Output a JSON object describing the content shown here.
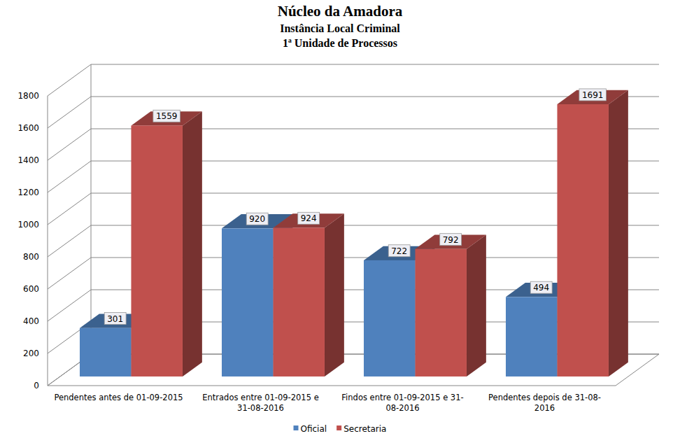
{
  "chart_data": {
    "type": "bar",
    "title": "Núcleo da Amadora",
    "subtitle": [
      "Instância Local Criminal",
      "1ª Unidade de Processos"
    ],
    "categories": [
      "Pendentes antes de 01-09-2015",
      "Entrados entre 01-09-2015 e 31-08-2016",
      "Findos entre 01-09-2015 e 31-08-2016",
      "Pendentes depois de 31-08-2016"
    ],
    "series": [
      {
        "name": "Oficial",
        "color": "#4f81bd",
        "values": [
          301,
          920,
          722,
          494
        ]
      },
      {
        "name": "Secretaria",
        "color": "#c0504d",
        "values": [
          1559,
          924,
          792,
          1691
        ]
      }
    ],
    "ylim": [
      0,
      1800
    ],
    "yticks": [
      0,
      200,
      400,
      600,
      800,
      1000,
      1200,
      1400,
      1600,
      1800
    ],
    "grid": true,
    "legend": "bottom",
    "data_labels": true
  }
}
